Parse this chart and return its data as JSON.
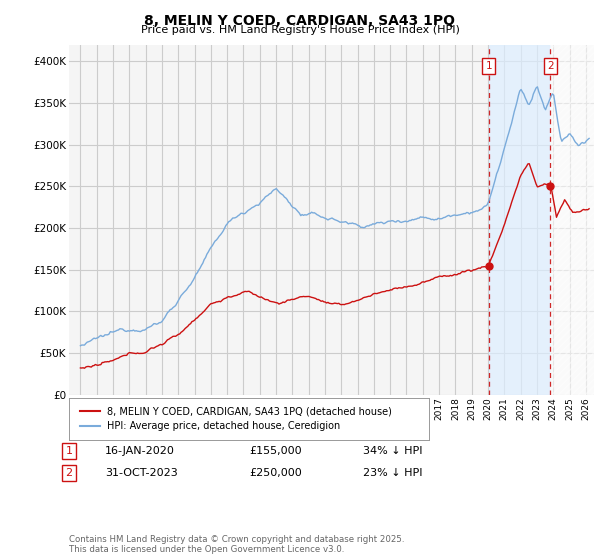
{
  "title": "8, MELIN Y COED, CARDIGAN, SA43 1PQ",
  "subtitle": "Price paid vs. HM Land Registry's House Price Index (HPI)",
  "ylim": [
    0,
    420000
  ],
  "yticks": [
    0,
    50000,
    100000,
    150000,
    200000,
    250000,
    300000,
    350000,
    400000
  ],
  "ytick_labels": [
    "£0",
    "£50K",
    "£100K",
    "£150K",
    "£200K",
    "£250K",
    "£300K",
    "£350K",
    "£400K"
  ],
  "background_color": "#ffffff",
  "plot_bg_color": "#f5f5f5",
  "grid_color": "#cccccc",
  "hpi_color": "#7aabdb",
  "price_color": "#cc1111",
  "dashed_line_color": "#cc1111",
  "shade_color": "#ddeeff",
  "marker1_date": "16-JAN-2020",
  "marker1_price": 155000,
  "marker1_pct": "34% ↓ HPI",
  "marker2_date": "31-OCT-2023",
  "marker2_price": 250000,
  "marker2_pct": "23% ↓ HPI",
  "legend_label1": "8, MELIN Y COED, CARDIGAN, SA43 1PQ (detached house)",
  "legend_label2": "HPI: Average price, detached house, Ceredigion",
  "footer": "Contains HM Land Registry data © Crown copyright and database right 2025.\nThis data is licensed under the Open Government Licence v3.0.",
  "vline1_x": 2020.04,
  "vline2_x": 2023.83,
  "sale1_y": 155000,
  "sale2_y": 250000,
  "xlim_left": 1994.3,
  "xlim_right": 2026.5
}
